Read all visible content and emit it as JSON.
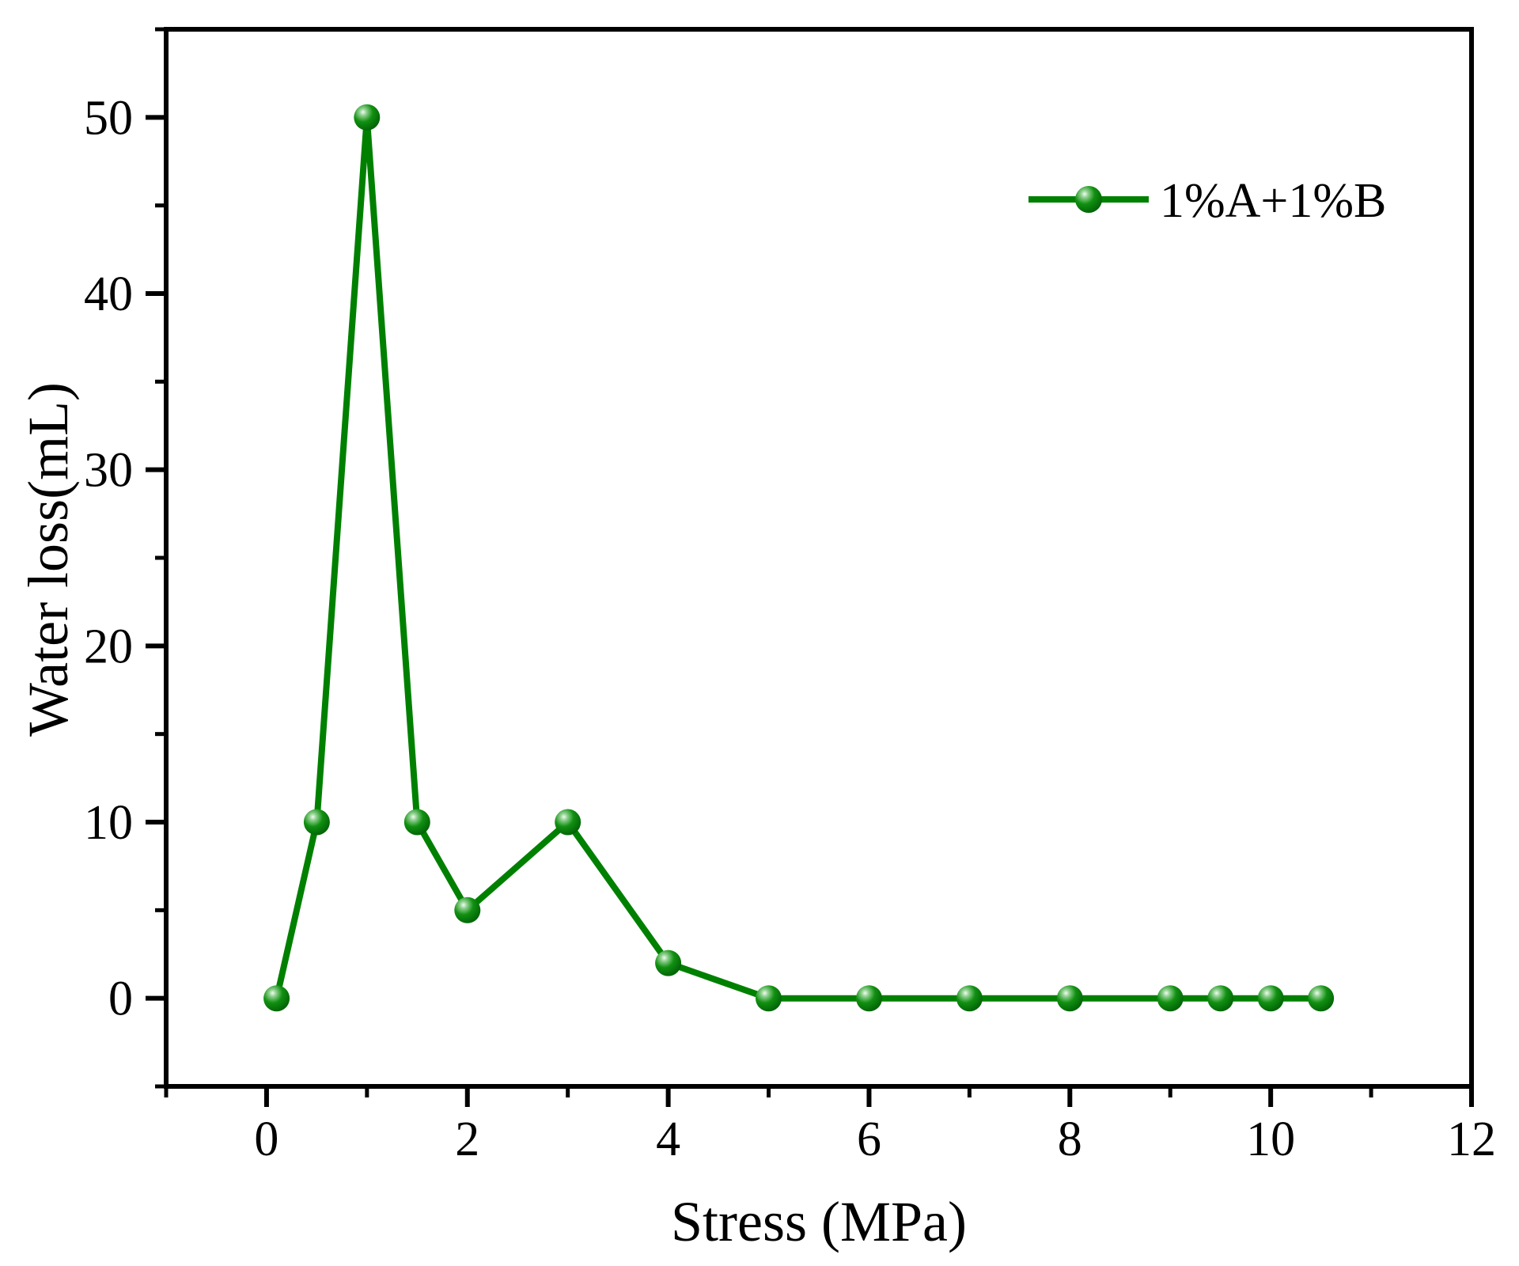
{
  "chart_data": {
    "type": "line",
    "title": "",
    "xlabel": "Stress (MPa)",
    "ylabel": "Water loss(mL)",
    "xlim": [
      -1,
      12
    ],
    "ylim": [
      -5,
      55
    ],
    "xticks_major": [
      0,
      2,
      4,
      6,
      8,
      10,
      12
    ],
    "xticks_minor": [
      -1,
      1,
      3,
      5,
      7,
      9,
      11
    ],
    "yticks_major": [
      0,
      10,
      20,
      30,
      40,
      50
    ],
    "yticks_minor": [
      -5,
      5,
      15,
      25,
      35,
      45,
      55
    ],
    "grid": false,
    "legend_position": "upper-right",
    "series": [
      {
        "name": "1%A+1%B",
        "color": "#008000",
        "marker": "sphere-ball",
        "x": [
          0.1,
          0.5,
          1,
          1.5,
          2,
          3,
          4,
          5,
          6,
          7,
          8,
          9,
          9.5,
          10,
          10.5
        ],
        "y": [
          0,
          10,
          50,
          10,
          5,
          10,
          2,
          0,
          0,
          0,
          0,
          0,
          0,
          0,
          0
        ]
      }
    ]
  },
  "colors": {
    "axis": "#000000",
    "background": "#ffffff",
    "series_line": "#008000",
    "marker_edge": "#006400",
    "marker_highlight": "#f2fbf2"
  }
}
